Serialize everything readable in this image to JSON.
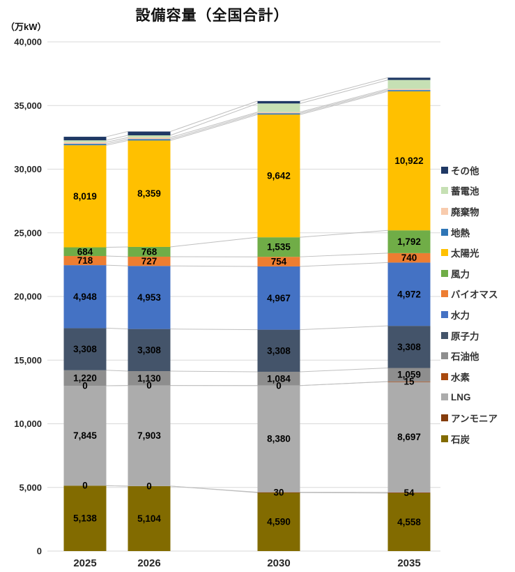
{
  "title": "設備容量（全国合計）",
  "unit_label": "（万kW）",
  "y_axis": {
    "tick_labels": [
      "0",
      "5,000",
      "10,000",
      "15,000",
      "20,000",
      "25,000",
      "30,000",
      "35,000",
      "40,000"
    ],
    "min": 0,
    "max": 40000,
    "step": 5000
  },
  "x_axis": {
    "tick_labels": [
      "2025",
      "2026",
      "2030",
      "2035"
    ]
  },
  "colors": {
    "gridline": "#D9D9D9",
    "connector_line": "#BFBFBF",
    "data_label": "#000000"
  },
  "chart_data": {
    "type": "bar",
    "stacked": true,
    "title": "設備容量（全国合計）",
    "ylabel": "（万kW）",
    "ylim": [
      0,
      40000
    ],
    "grid": true,
    "legend_position": "right",
    "categories": [
      "2025",
      "2026",
      "2030",
      "2035"
    ],
    "series": [
      {
        "name": "石炭",
        "color": "#826B00",
        "values": [
          5138,
          5104,
          4590,
          4558
        ],
        "labeled": true
      },
      {
        "name": "アンモニア",
        "color": "#843C0C",
        "values": [
          0,
          0,
          30,
          54
        ],
        "labeled": true
      },
      {
        "name": "LNG",
        "color": "#ACACAC",
        "values": [
          7845,
          7903,
          8380,
          8697
        ],
        "labeled": true
      },
      {
        "name": "水素",
        "color": "#A9490E",
        "values": [
          0,
          0,
          0,
          15
        ],
        "labeled": true
      },
      {
        "name": "石油他",
        "color": "#8E8E8E",
        "values": [
          1220,
          1130,
          1084,
          1059
        ],
        "labeled": true
      },
      {
        "name": "原子力",
        "color": "#44546A",
        "values": [
          3308,
          3308,
          3308,
          3308
        ],
        "labeled": true
      },
      {
        "name": "水力",
        "color": "#4472C4",
        "values": [
          4948,
          4953,
          4967,
          4972
        ],
        "labeled": true
      },
      {
        "name": "バイオマス",
        "color": "#ED7D31",
        "values": [
          718,
          727,
          754,
          740
        ],
        "labeled": true
      },
      {
        "name": "風力",
        "color": "#70AD47",
        "values": [
          684,
          768,
          1535,
          1792
        ],
        "labeled": true
      },
      {
        "name": "太陽光",
        "color": "#FFC000",
        "values": [
          8019,
          8359,
          9642,
          10922
        ],
        "labeled": true
      },
      {
        "name": "地熱",
        "color": "#2E75B6",
        "values": [
          110,
          110,
          95,
          95
        ],
        "labeled": false
      },
      {
        "name": "廃棄物",
        "color": "#F8CBAD",
        "values": [
          125,
          125,
          95,
          95
        ],
        "labeled": false
      },
      {
        "name": "蓄電池",
        "color": "#C6E0B4",
        "values": [
          150,
          170,
          680,
          700
        ],
        "labeled": false
      },
      {
        "name": "その他",
        "color": "#1F3864",
        "values": [
          280,
          300,
          190,
          180
        ],
        "labeled": false
      }
    ]
  }
}
